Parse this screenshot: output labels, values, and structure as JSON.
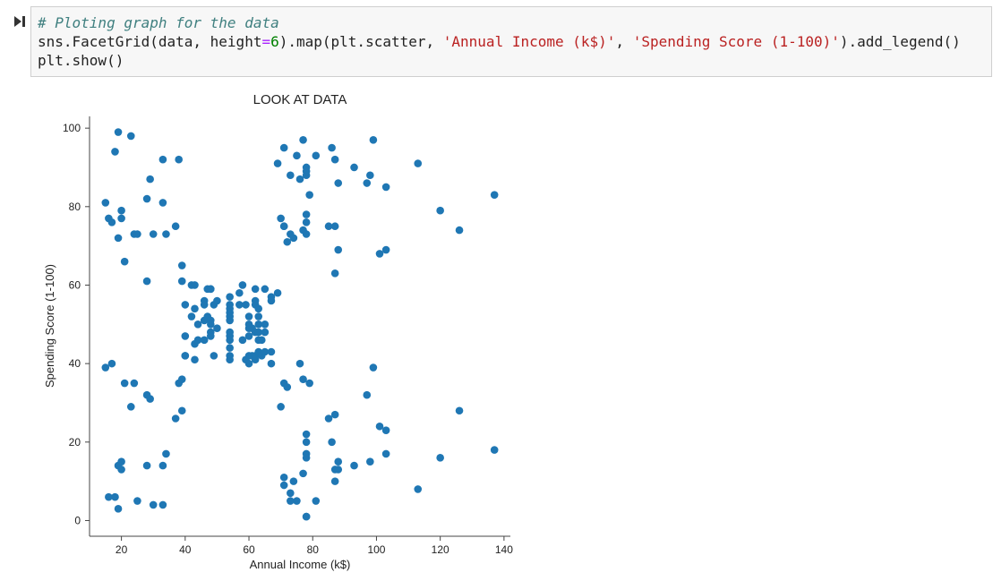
{
  "code": {
    "comment": "# Ploting graph for the data",
    "line1": {
      "call_head": "sns.FacetGrid(data, height",
      "eq": "=",
      "height_value": "6",
      "call_mid": ").map(plt.scatter, ",
      "x_arg": "'Annual Income (k$)'",
      "comma": ", ",
      "y_arg": "'Spending Score (1-100)'",
      "call_tail": ").add_legend()"
    },
    "line2": "plt.show()"
  },
  "run_icon": "run-cell-icon",
  "chart_data": {
    "type": "scatter",
    "title": "LOOK AT DATA",
    "xlabel": "Annual Income (k$)",
    "ylabel": "Spending Score (1-100)",
    "xlim": [
      10,
      142
    ],
    "ylim": [
      -4,
      103
    ],
    "xticks": [
      20,
      40,
      60,
      80,
      100,
      120,
      140
    ],
    "yticks": [
      0,
      20,
      40,
      60,
      80,
      100
    ],
    "grid": false,
    "marker_color": "#1f77b4",
    "points": [
      [
        15,
        39
      ],
      [
        15,
        81
      ],
      [
        16,
        6
      ],
      [
        16,
        77
      ],
      [
        17,
        40
      ],
      [
        17,
        76
      ],
      [
        18,
        6
      ],
      [
        18,
        94
      ],
      [
        19,
        3
      ],
      [
        19,
        72
      ],
      [
        19,
        14
      ],
      [
        19,
        99
      ],
      [
        20,
        15
      ],
      [
        20,
        77
      ],
      [
        20,
        13
      ],
      [
        20,
        79
      ],
      [
        21,
        35
      ],
      [
        21,
        66
      ],
      [
        23,
        29
      ],
      [
        23,
        98
      ],
      [
        24,
        35
      ],
      [
        24,
        73
      ],
      [
        25,
        5
      ],
      [
        25,
        73
      ],
      [
        28,
        14
      ],
      [
        28,
        82
      ],
      [
        28,
        32
      ],
      [
        28,
        61
      ],
      [
        29,
        31
      ],
      [
        29,
        87
      ],
      [
        30,
        4
      ],
      [
        30,
        73
      ],
      [
        33,
        4
      ],
      [
        33,
        92
      ],
      [
        33,
        14
      ],
      [
        33,
        81
      ],
      [
        34,
        17
      ],
      [
        34,
        73
      ],
      [
        37,
        26
      ],
      [
        37,
        75
      ],
      [
        38,
        35
      ],
      [
        38,
        92
      ],
      [
        39,
        36
      ],
      [
        39,
        61
      ],
      [
        39,
        28
      ],
      [
        39,
        65
      ],
      [
        40,
        55
      ],
      [
        40,
        47
      ],
      [
        40,
        42
      ],
      [
        40,
        42
      ],
      [
        42,
        52
      ],
      [
        42,
        60
      ],
      [
        43,
        54
      ],
      [
        43,
        60
      ],
      [
        43,
        45
      ],
      [
        43,
        41
      ],
      [
        44,
        50
      ],
      [
        44,
        46
      ],
      [
        46,
        51
      ],
      [
        46,
        46
      ],
      [
        46,
        56
      ],
      [
        46,
        55
      ],
      [
        47,
        52
      ],
      [
        47,
        59
      ],
      [
        48,
        51
      ],
      [
        48,
        59
      ],
      [
        48,
        50
      ],
      [
        48,
        48
      ],
      [
        48,
        59
      ],
      [
        48,
        47
      ],
      [
        49,
        55
      ],
      [
        49,
        42
      ],
      [
        50,
        49
      ],
      [
        50,
        56
      ],
      [
        54,
        47
      ],
      [
        54,
        54
      ],
      [
        54,
        53
      ],
      [
        54,
        48
      ],
      [
        54,
        52
      ],
      [
        54,
        42
      ],
      [
        54,
        51
      ],
      [
        54,
        55
      ],
      [
        54,
        41
      ],
      [
        54,
        44
      ],
      [
        54,
        57
      ],
      [
        54,
        46
      ],
      [
        57,
        58
      ],
      [
        57,
        55
      ],
      [
        58,
        60
      ],
      [
        58,
        46
      ],
      [
        59,
        55
      ],
      [
        59,
        41
      ],
      [
        60,
        49
      ],
      [
        60,
        40
      ],
      [
        60,
        42
      ],
      [
        60,
        52
      ],
      [
        60,
        47
      ],
      [
        60,
        50
      ],
      [
        61,
        42
      ],
      [
        61,
        49
      ],
      [
        62,
        41
      ],
      [
        62,
        48
      ],
      [
        62,
        59
      ],
      [
        62,
        55
      ],
      [
        62,
        56
      ],
      [
        62,
        42
      ],
      [
        63,
        50
      ],
      [
        63,
        46
      ],
      [
        63,
        43
      ],
      [
        63,
        48
      ],
      [
        63,
        52
      ],
      [
        63,
        54
      ],
      [
        64,
        42
      ],
      [
        64,
        46
      ],
      [
        65,
        48
      ],
      [
        65,
        50
      ],
      [
        65,
        43
      ],
      [
        65,
        59
      ],
      [
        67,
        43
      ],
      [
        67,
        57
      ],
      [
        67,
        56
      ],
      [
        67,
        40
      ],
      [
        69,
        58
      ],
      [
        69,
        91
      ],
      [
        70,
        29
      ],
      [
        70,
        77
      ],
      [
        71,
        35
      ],
      [
        71,
        95
      ],
      [
        71,
        11
      ],
      [
        71,
        75
      ],
      [
        71,
        9
      ],
      [
        71,
        75
      ],
      [
        72,
        34
      ],
      [
        72,
        71
      ],
      [
        73,
        5
      ],
      [
        73,
        88
      ],
      [
        73,
        7
      ],
      [
        73,
        73
      ],
      [
        74,
        10
      ],
      [
        74,
        72
      ],
      [
        75,
        5
      ],
      [
        75,
        93
      ],
      [
        76,
        40
      ],
      [
        76,
        87
      ],
      [
        77,
        12
      ],
      [
        77,
        97
      ],
      [
        77,
        36
      ],
      [
        77,
        74
      ],
      [
        78,
        22
      ],
      [
        78,
        90
      ],
      [
        78,
        17
      ],
      [
        78,
        88
      ],
      [
        78,
        20
      ],
      [
        78,
        76
      ],
      [
        78,
        16
      ],
      [
        78,
        89
      ],
      [
        78,
        1
      ],
      [
        78,
        78
      ],
      [
        78,
        1
      ],
      [
        78,
        73
      ],
      [
        79,
        35
      ],
      [
        79,
        83
      ],
      [
        81,
        5
      ],
      [
        81,
        93
      ],
      [
        85,
        26
      ],
      [
        85,
        75
      ],
      [
        86,
        20
      ],
      [
        86,
        95
      ],
      [
        87,
        27
      ],
      [
        87,
        63
      ],
      [
        87,
        13
      ],
      [
        87,
        75
      ],
      [
        87,
        10
      ],
      [
        87,
        92
      ],
      [
        88,
        13
      ],
      [
        88,
        86
      ],
      [
        88,
        15
      ],
      [
        88,
        69
      ],
      [
        93,
        14
      ],
      [
        93,
        90
      ],
      [
        97,
        32
      ],
      [
        97,
        86
      ],
      [
        98,
        15
      ],
      [
        98,
        88
      ],
      [
        99,
        39
      ],
      [
        99,
        97
      ],
      [
        101,
        24
      ],
      [
        101,
        68
      ],
      [
        103,
        17
      ],
      [
        103,
        85
      ],
      [
        103,
        23
      ],
      [
        103,
        69
      ],
      [
        113,
        8
      ],
      [
        113,
        91
      ],
      [
        120,
        16
      ],
      [
        120,
        79
      ],
      [
        126,
        28
      ],
      [
        126,
        74
      ],
      [
        137,
        18
      ],
      [
        137,
        83
      ]
    ]
  }
}
